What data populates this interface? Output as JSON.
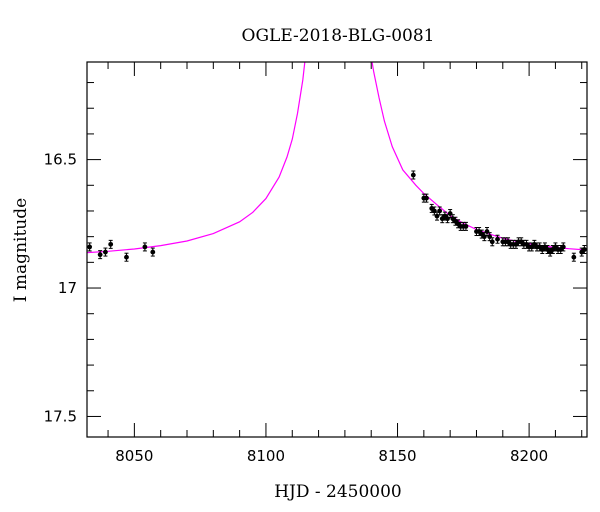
{
  "chart_data": {
    "type": "scatter",
    "title": "OGLE-2018-BLG-0081",
    "xlabel": "HJD - 2450000",
    "ylabel": "I magnitude",
    "xlim": [
      8032,
      8222
    ],
    "ylim": [
      17.58,
      16.12
    ],
    "y_inverted": true,
    "x_ticks_major": [
      8050,
      8100,
      8150,
      8200
    ],
    "x_tick_labels": [
      "8050",
      "8100",
      "8150",
      "8200"
    ],
    "y_ticks_major": [
      16.5,
      17,
      17.5
    ],
    "y_tick_labels": [
      "16.5",
      "17",
      "17.5"
    ],
    "grid": false,
    "colors": {
      "data": "#000000",
      "model": "#ff00ff"
    },
    "series": [
      {
        "kind": "model",
        "points": [
          [
            8032,
            16.862
          ],
          [
            8040,
            16.857
          ],
          [
            8050,
            16.848
          ],
          [
            8060,
            16.835
          ],
          [
            8070,
            16.817
          ],
          [
            8080,
            16.788
          ],
          [
            8090,
            16.742
          ],
          [
            8095,
            16.705
          ],
          [
            8100,
            16.652
          ],
          [
            8105,
            16.568
          ],
          [
            8108,
            16.49
          ],
          [
            8110,
            16.42
          ],
          [
            8112,
            16.32
          ],
          [
            8114,
            16.19
          ],
          [
            8115,
            16.1
          ],
          [
            8140,
            16.1
          ],
          [
            8141,
            16.16
          ],
          [
            8143,
            16.26
          ],
          [
            8145,
            16.35
          ],
          [
            8148,
            16.45
          ],
          [
            8152,
            16.54
          ],
          [
            8157,
            16.6
          ],
          [
            8160,
            16.632
          ],
          [
            8165,
            16.676
          ],
          [
            8170,
            16.718
          ],
          [
            8175,
            16.748
          ],
          [
            8180,
            16.772
          ],
          [
            8185,
            16.79
          ],
          [
            8190,
            16.806
          ],
          [
            8195,
            16.818
          ],
          [
            8200,
            16.828
          ],
          [
            8205,
            16.836
          ],
          [
            8210,
            16.842
          ],
          [
            8215,
            16.847
          ],
          [
            8222,
            16.852
          ]
        ]
      },
      {
        "kind": "data",
        "points": [
          [
            8033,
            16.84
          ],
          [
            8037,
            16.87
          ],
          [
            8039,
            16.86
          ],
          [
            8041,
            16.83
          ],
          [
            8047,
            16.88
          ],
          [
            8054,
            16.84
          ],
          [
            8057,
            16.86
          ],
          [
            8156,
            16.56
          ],
          [
            8160,
            16.65
          ],
          [
            8161,
            16.65
          ],
          [
            8163,
            16.69
          ],
          [
            8164,
            16.7
          ],
          [
            8165,
            16.72
          ],
          [
            8166,
            16.7
          ],
          [
            8167,
            16.73
          ],
          [
            8168,
            16.72
          ],
          [
            8169,
            16.73
          ],
          [
            8170,
            16.71
          ],
          [
            8171,
            16.73
          ],
          [
            8172,
            16.74
          ],
          [
            8173,
            16.75
          ],
          [
            8174,
            16.76
          ],
          [
            8175,
            16.76
          ],
          [
            8176,
            16.76
          ],
          [
            8180,
            16.78
          ],
          [
            8181,
            16.78
          ],
          [
            8182,
            16.79
          ],
          [
            8183,
            16.8
          ],
          [
            8184,
            16.78
          ],
          [
            8185,
            16.8
          ],
          [
            8186,
            16.82
          ],
          [
            8188,
            16.81
          ],
          [
            8190,
            16.82
          ],
          [
            8191,
            16.82
          ],
          [
            8192,
            16.82
          ],
          [
            8193,
            16.83
          ],
          [
            8194,
            16.83
          ],
          [
            8195,
            16.83
          ],
          [
            8196,
            16.82
          ],
          [
            8197,
            16.82
          ],
          [
            8198,
            16.83
          ],
          [
            8199,
            16.83
          ],
          [
            8200,
            16.84
          ],
          [
            8201,
            16.84
          ],
          [
            8202,
            16.83
          ],
          [
            8203,
            16.84
          ],
          [
            8204,
            16.84
          ],
          [
            8205,
            16.85
          ],
          [
            8206,
            16.84
          ],
          [
            8207,
            16.85
          ],
          [
            8208,
            16.86
          ],
          [
            8209,
            16.85
          ],
          [
            8210,
            16.84
          ],
          [
            8211,
            16.85
          ],
          [
            8212,
            16.85
          ],
          [
            8213,
            16.84
          ],
          [
            8217,
            16.88
          ],
          [
            8220,
            16.86
          ],
          [
            8221,
            16.85
          ]
        ]
      }
    ]
  }
}
